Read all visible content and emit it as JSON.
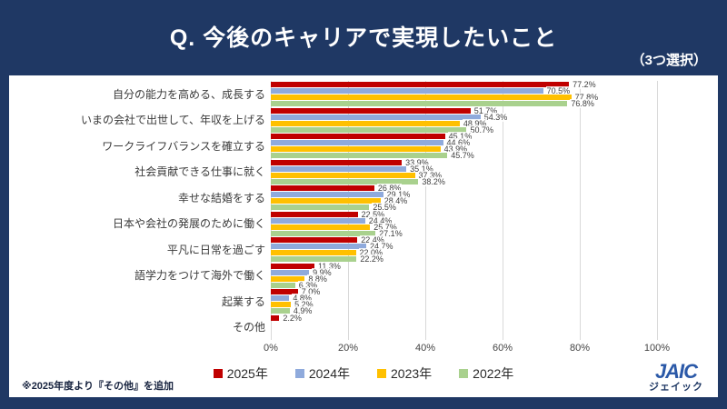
{
  "page": {
    "title": "Q. 今後のキャリアで実現したいこと",
    "subtitle": "（3つ選択）",
    "note": "※2025年度より『その他』を追加",
    "logo": {
      "text": "JAIC",
      "subtext": "ジェイック"
    }
  },
  "colors": {
    "background": "#1F3864",
    "panel": "#FFFFFF",
    "gridline": "#D9D9D9",
    "series_2025": "#C00000",
    "series_2024": "#8FAADC",
    "series_2023": "#FFC000",
    "series_2022": "#A9D18E"
  },
  "chart_data": {
    "type": "bar",
    "orientation": "horizontal",
    "title": "Q. 今後のキャリアで実現したいこと",
    "categories": [
      "自分の能力を高める、成長する",
      "いまの会社で出世して、年収を上げる",
      "ワークライフバランスを確立する",
      "社会貢献できる仕事に就く",
      "幸せな結婚をする",
      "日本や会社の発展のために働く",
      "平凡に日常を過ごす",
      "語学力をつけて海外で働く",
      "起業する",
      "その他"
    ],
    "series": [
      {
        "name": "2025年",
        "color": "#C00000",
        "values": [
          77.2,
          51.7,
          45.1,
          33.9,
          26.8,
          22.5,
          22.4,
          11.3,
          7.0,
          2.2
        ]
      },
      {
        "name": "2024年",
        "color": "#8FAADC",
        "values": [
          70.5,
          54.3,
          44.6,
          35.1,
          29.1,
          24.4,
          24.7,
          9.9,
          4.8,
          null
        ]
      },
      {
        "name": "2023年",
        "color": "#FFC000",
        "values": [
          77.8,
          48.9,
          43.9,
          37.3,
          28.4,
          25.7,
          22.0,
          8.8,
          5.2,
          null
        ]
      },
      {
        "name": "2022年",
        "color": "#A9D18E",
        "values": [
          76.8,
          50.7,
          45.7,
          38.2,
          25.5,
          27.1,
          22.2,
          6.3,
          4.9,
          null
        ]
      }
    ],
    "x_ticks": [
      "0%",
      "20%",
      "40%",
      "60%",
      "80%",
      "100%"
    ],
    "xlim": [
      0,
      100
    ],
    "value_suffix": "%",
    "grid": true,
    "legend_position": "bottom"
  }
}
